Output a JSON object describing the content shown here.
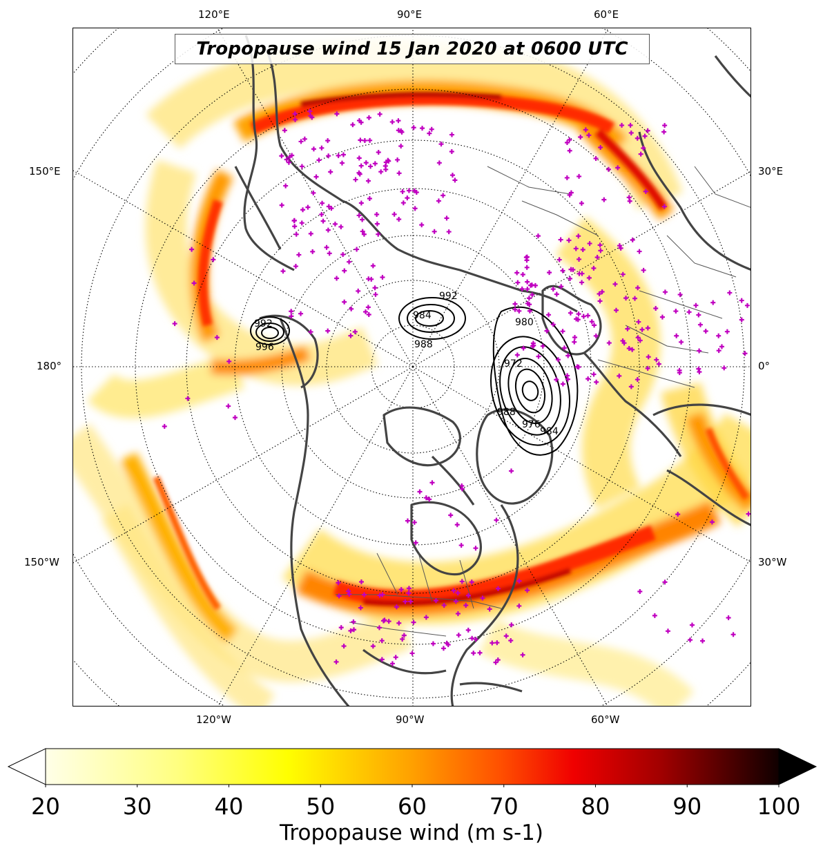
{
  "title": "Tropopause wind 15 Jan 2020 at 0600 UTC",
  "longitude_labels": {
    "top": [
      "120°E",
      "90°E",
      "60°E"
    ],
    "left": [
      "150°E",
      "180°",
      "150°W"
    ],
    "right": [
      "30°E",
      "0°",
      "30°W"
    ],
    "bottom": [
      "120°W",
      "90°W",
      "60°W"
    ]
  },
  "pressure_labels": {
    "low_a": [
      "984",
      "988",
      "992"
    ],
    "low_b": [
      "972",
      "976",
      "980",
      "984",
      "988"
    ],
    "low_c": [
      "992",
      "996"
    ]
  },
  "colorbar": {
    "label": "Tropopause wind (m s-1)",
    "ticks": [
      "20",
      "30",
      "40",
      "50",
      "60",
      "70",
      "80",
      "90",
      "100"
    ],
    "min": 20,
    "max": 100,
    "extend": "both",
    "colormap": "hot_r"
  },
  "colors": {
    "jet_low": "#ffffcc",
    "jet_mid": "#ffd200",
    "jet_high": "#ff2a00",
    "jet_peak": "#8b0000",
    "coast": "#444444",
    "station": "#c000c0",
    "contour": "#000000"
  }
}
